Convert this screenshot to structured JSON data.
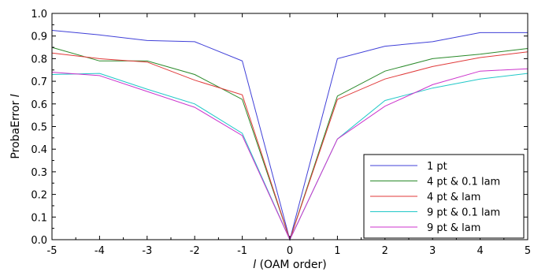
{
  "chart_data": {
    "type": "line",
    "title": "",
    "xlabel_italic": "l",
    "xlabel_rest": " (OAM order)",
    "ylabel_main": "ProbaError ",
    "ylabel_italic": "l",
    "x": [
      -5,
      -4,
      -3,
      -2,
      -1,
      0,
      1,
      2,
      3,
      4,
      5
    ],
    "xlim": [
      -5,
      5
    ],
    "ylim": [
      0,
      1
    ],
    "xticks": [
      "-5",
      "-4",
      "-3",
      "-2",
      "-1",
      "0",
      "1",
      "2",
      "3",
      "4",
      "5"
    ],
    "yticks": [
      "0.0",
      "0.1",
      "0.2",
      "0.3",
      "0.4",
      "0.5",
      "0.6",
      "0.7",
      "0.8",
      "0.9",
      "1.0"
    ],
    "grid": false,
    "legend_position": "bottom-right",
    "series": [
      {
        "name": "1 pt",
        "color": "#4040d8",
        "values": [
          0.925,
          0.905,
          0.88,
          0.875,
          0.79,
          0.0,
          0.8,
          0.855,
          0.875,
          0.915,
          0.915
        ]
      },
      {
        "name": "4 pt & 0.1 lam",
        "color": "#2a8a2a",
        "values": [
          0.85,
          0.79,
          0.79,
          0.73,
          0.62,
          0.0,
          0.635,
          0.745,
          0.8,
          0.82,
          0.845
        ]
      },
      {
        "name": "4 pt & lam",
        "color": "#e03a3a",
        "values": [
          0.825,
          0.8,
          0.785,
          0.705,
          0.64,
          0.0,
          0.62,
          0.71,
          0.765,
          0.805,
          0.83
        ]
      },
      {
        "name": "9 pt & 0.1 lam",
        "color": "#22c8c8",
        "values": [
          0.73,
          0.735,
          0.665,
          0.6,
          0.47,
          0.0,
          0.445,
          0.615,
          0.67,
          0.71,
          0.735
        ]
      },
      {
        "name": "9 pt & lam",
        "color": "#cc33cc",
        "values": [
          0.74,
          0.725,
          0.655,
          0.585,
          0.46,
          0.0,
          0.445,
          0.59,
          0.685,
          0.745,
          0.755
        ]
      }
    ]
  }
}
